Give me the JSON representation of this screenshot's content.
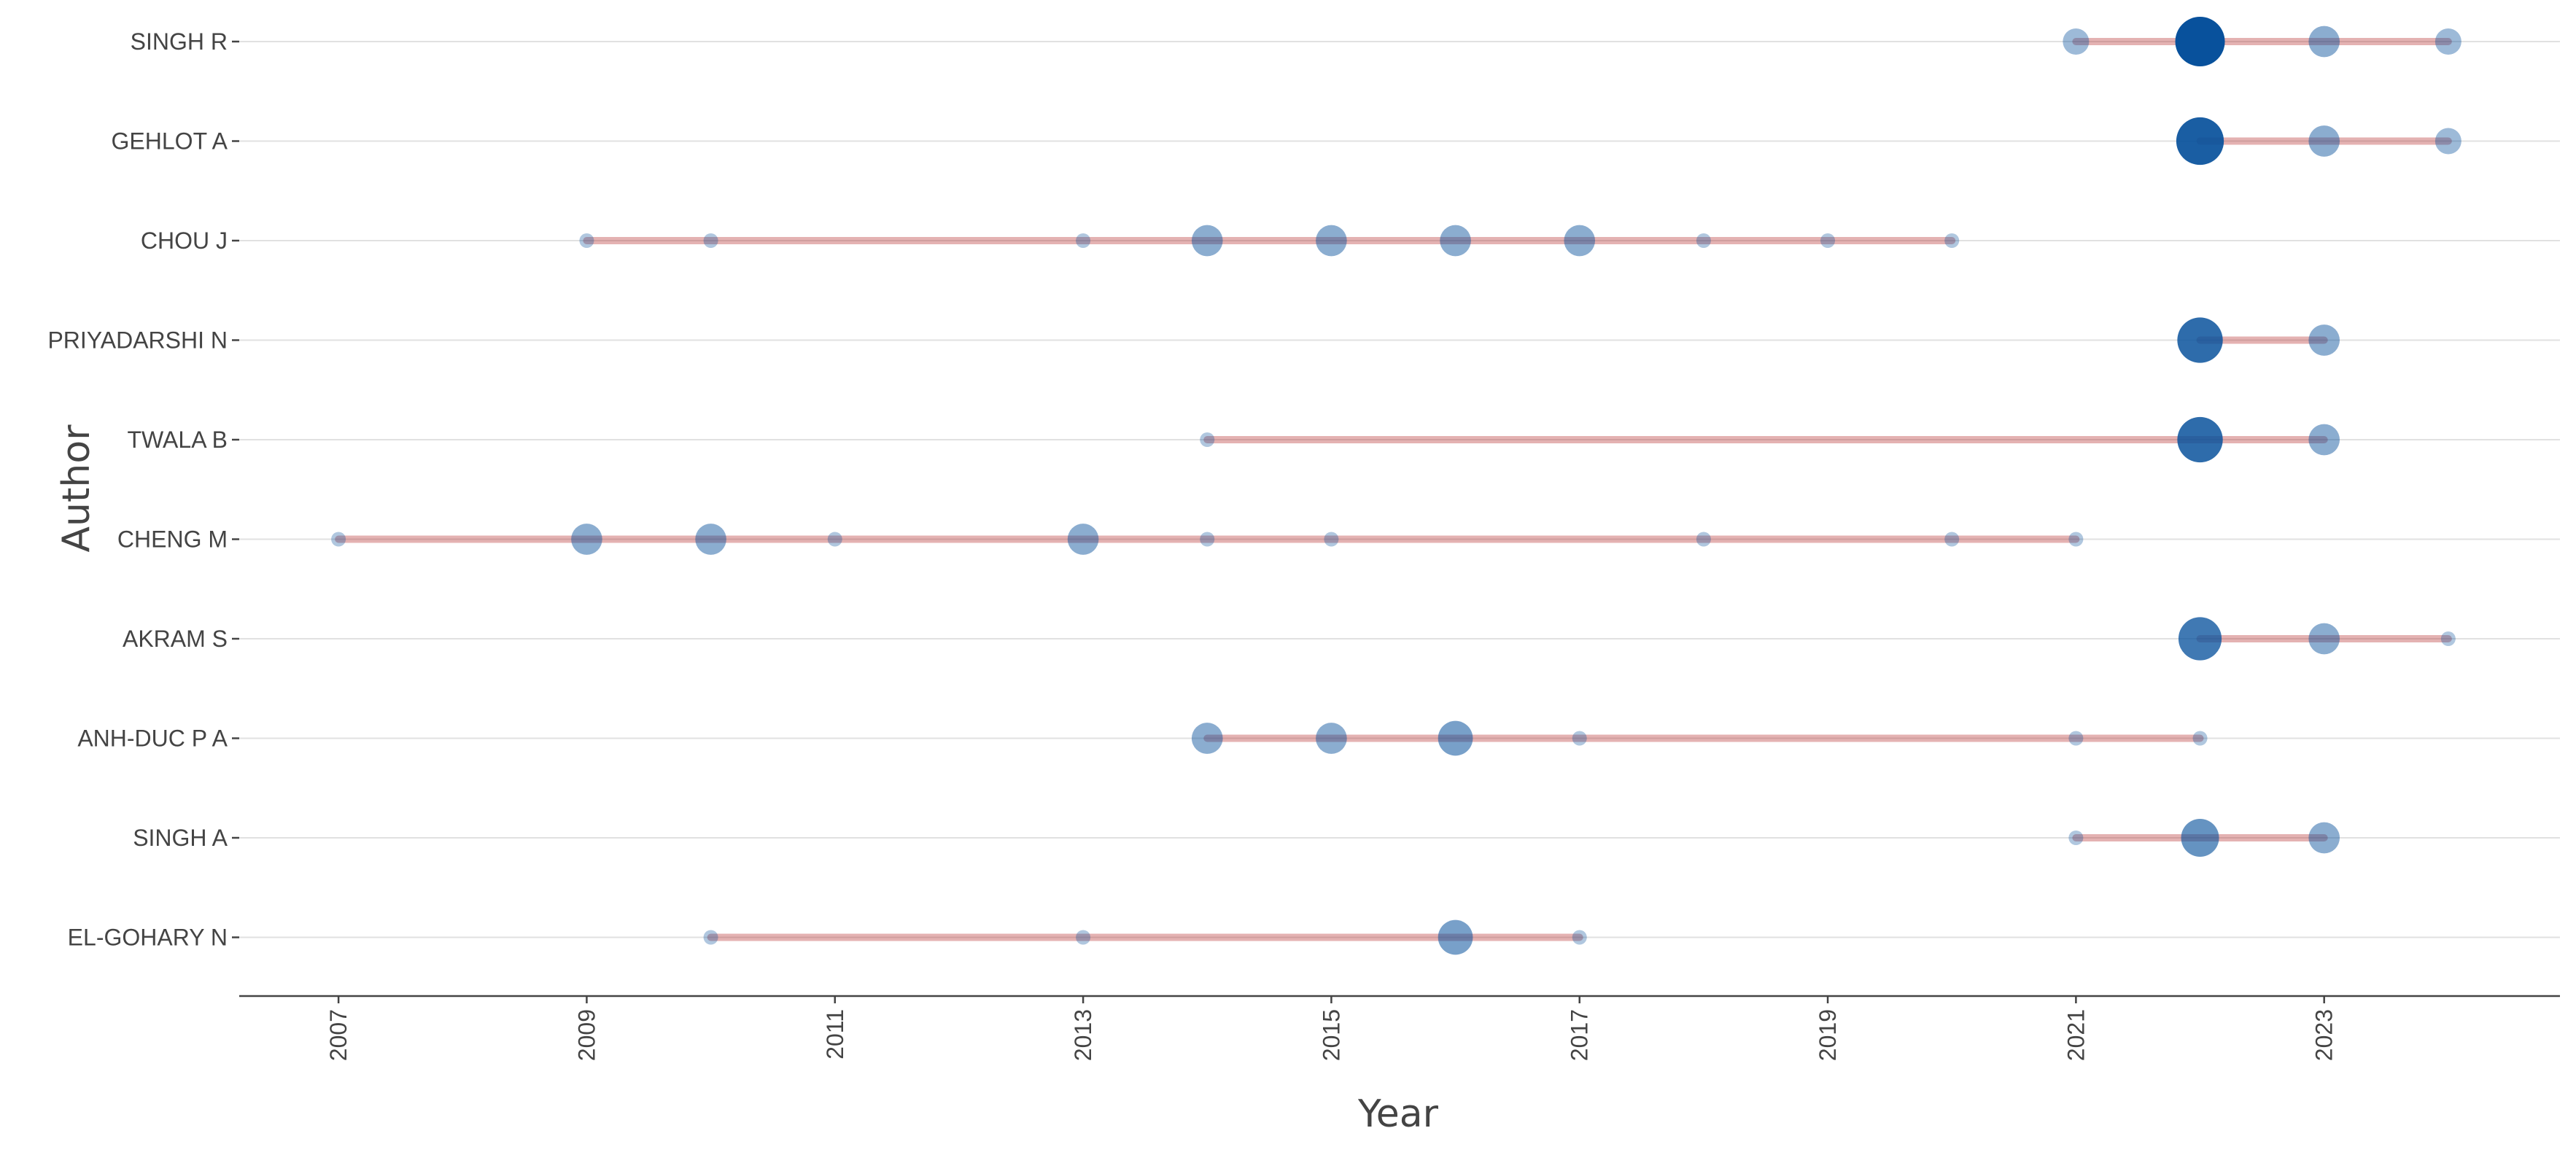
{
  "chart_data": {
    "type": "scatter",
    "xlabel": "Year",
    "ylabel": "Author",
    "xlim": [
      2006.2,
      2024.9
    ],
    "x_ticks": [
      2007,
      2009,
      2011,
      2013,
      2015,
      2017,
      2019,
      2021,
      2023
    ],
    "grid": true,
    "colors": {
      "point": "#08519c",
      "range_line": "#b22222",
      "grid": "#e1e1e1",
      "axis": "#444444"
    },
    "authors": [
      {
        "name": "SINGH R",
        "points": [
          {
            "year": 2021,
            "size": 2
          },
          {
            "year": 2022,
            "size": 10
          },
          {
            "year": 2023,
            "size": 3
          },
          {
            "year": 2024,
            "size": 2
          }
        ]
      },
      {
        "name": "GEHLOT A",
        "points": [
          {
            "year": 2022,
            "size": 9
          },
          {
            "year": 2023,
            "size": 3
          },
          {
            "year": 2024,
            "size": 2
          }
        ]
      },
      {
        "name": "CHOU J",
        "points": [
          {
            "year": 2009,
            "size": 1
          },
          {
            "year": 2010,
            "size": 1
          },
          {
            "year": 2013,
            "size": 1
          },
          {
            "year": 2014,
            "size": 3
          },
          {
            "year": 2015,
            "size": 3
          },
          {
            "year": 2016,
            "size": 3
          },
          {
            "year": 2017,
            "size": 3
          },
          {
            "year": 2018,
            "size": 1
          },
          {
            "year": 2019,
            "size": 1
          },
          {
            "year": 2020,
            "size": 1
          }
        ]
      },
      {
        "name": "PRIYADARSHI N",
        "points": [
          {
            "year": 2022,
            "size": 8
          },
          {
            "year": 2023,
            "size": 3
          }
        ]
      },
      {
        "name": "TWALA B",
        "points": [
          {
            "year": 2014,
            "size": 1
          },
          {
            "year": 2022,
            "size": 8
          },
          {
            "year": 2023,
            "size": 3
          }
        ]
      },
      {
        "name": "CHENG M",
        "points": [
          {
            "year": 2007,
            "size": 1
          },
          {
            "year": 2009,
            "size": 3
          },
          {
            "year": 2010,
            "size": 3
          },
          {
            "year": 2011,
            "size": 1
          },
          {
            "year": 2013,
            "size": 3
          },
          {
            "year": 2014,
            "size": 1
          },
          {
            "year": 2015,
            "size": 1
          },
          {
            "year": 2018,
            "size": 1
          },
          {
            "year": 2020,
            "size": 1
          },
          {
            "year": 2021,
            "size": 1
          }
        ]
      },
      {
        "name": "AKRAM S",
        "points": [
          {
            "year": 2022,
            "size": 7
          },
          {
            "year": 2023,
            "size": 3
          },
          {
            "year": 2024,
            "size": 1
          }
        ]
      },
      {
        "name": "ANH-DUC P A",
        "points": [
          {
            "year": 2014,
            "size": 3
          },
          {
            "year": 2015,
            "size": 3
          },
          {
            "year": 2016,
            "size": 4
          },
          {
            "year": 2017,
            "size": 1
          },
          {
            "year": 2021,
            "size": 1
          },
          {
            "year": 2022,
            "size": 1
          }
        ]
      },
      {
        "name": "SINGH A",
        "points": [
          {
            "year": 2021,
            "size": 1
          },
          {
            "year": 2022,
            "size": 5
          },
          {
            "year": 2023,
            "size": 3
          }
        ]
      },
      {
        "name": "EL-GOHARY N",
        "points": [
          {
            "year": 2010,
            "size": 1
          },
          {
            "year": 2013,
            "size": 1
          },
          {
            "year": 2016,
            "size": 4
          },
          {
            "year": 2017,
            "size": 1
          }
        ]
      }
    ]
  }
}
